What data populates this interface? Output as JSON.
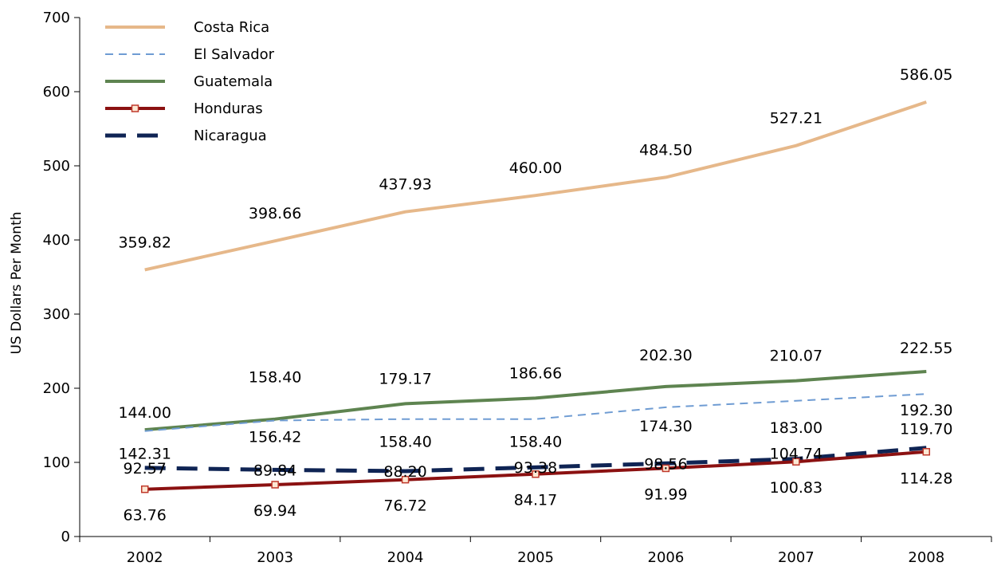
{
  "chart_data": {
    "type": "line",
    "title": "",
    "xlabel": "",
    "ylabel": "US Dollars Per Month",
    "ylim": [
      0,
      700
    ],
    "yticks": [
      "0",
      "100",
      "200",
      "300",
      "400",
      "500",
      "600",
      "700"
    ],
    "categories": [
      "2002",
      "2003",
      "2004",
      "2005",
      "2006",
      "2007",
      "2008"
    ],
    "grid": false,
    "legend_position": "top-left",
    "series": [
      {
        "name": "Costa Rica",
        "color": "#E6B88A",
        "style": "solid",
        "marker": "none",
        "values": [
          359.82,
          398.66,
          437.93,
          460.0,
          484.5,
          527.21,
          586.05
        ],
        "labels": [
          "359.82",
          "398.66",
          "437.93",
          "460.00",
          "484.50",
          "527.21",
          "586.05"
        ]
      },
      {
        "name": "El Salvador",
        "color": "#6F9CD3",
        "style": "dashed-thin",
        "marker": "none",
        "values": [
          142.31,
          156.42,
          158.4,
          158.4,
          174.3,
          183.0,
          192.3
        ],
        "labels": [
          "142.31",
          "156.42",
          "158.40",
          "158.40",
          "174.30",
          "183.00",
          "192.30"
        ]
      },
      {
        "name": "Guatemala",
        "color": "#5E8450",
        "style": "solid",
        "marker": "none",
        "values": [
          144.0,
          158.4,
          179.17,
          186.66,
          202.3,
          210.07,
          222.55
        ],
        "labels": [
          "144.00",
          "158.40",
          "179.17",
          "186.66",
          "202.30",
          "210.07",
          "222.55"
        ]
      },
      {
        "name": "Honduras",
        "color": "#8B1111",
        "style": "solid",
        "marker": "square",
        "values": [
          63.76,
          69.94,
          76.72,
          84.17,
          91.99,
          100.83,
          114.28
        ],
        "labels": [
          "63.76",
          "69.94",
          "76.72",
          "84.17",
          "91.99",
          "100.83",
          "114.28"
        ]
      },
      {
        "name": "Nicaragua",
        "color": "#0F2454",
        "style": "dashed-thick",
        "marker": "none",
        "values": [
          92.57,
          89.84,
          88.2,
          93.38,
          98.56,
          104.74,
          119.7
        ],
        "labels": [
          "92.57",
          "89.84",
          "88.20",
          "93.38",
          "98.56",
          "104.74",
          "119.70"
        ]
      }
    ]
  }
}
